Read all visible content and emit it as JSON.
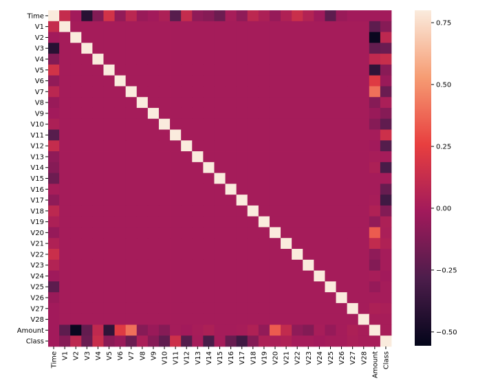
{
  "chart_data": {
    "type": "heatmap",
    "categories": [
      "Time",
      "V1",
      "V2",
      "V3",
      "V4",
      "V5",
      "V6",
      "V7",
      "V8",
      "V9",
      "V10",
      "V11",
      "V12",
      "V13",
      "V14",
      "V15",
      "V16",
      "V17",
      "V18",
      "V19",
      "V20",
      "V21",
      "V22",
      "V23",
      "V24",
      "V25",
      "V26",
      "V27",
      "V28",
      "Amount",
      "Class"
    ],
    "matrix": [
      [
        1,
        0.12,
        -0.01,
        -0.42,
        -0.11,
        0.17,
        -0.06,
        0.08,
        -0.04,
        -0.01,
        0.03,
        -0.25,
        0.12,
        -0.07,
        -0.1,
        -0.18,
        0.01,
        -0.07,
        0.09,
        0.03,
        -0.05,
        0.04,
        0.14,
        0.05,
        -0.02,
        -0.23,
        -0.04,
        -0.01,
        -0.01,
        -0.01,
        -0.01
      ],
      [
        0.12,
        1,
        0,
        0,
        0,
        0,
        0,
        0,
        0,
        0,
        0,
        0,
        0,
        0,
        0,
        0,
        0,
        0,
        0,
        0,
        0,
        0,
        0,
        0,
        0,
        0,
        0,
        0,
        0,
        -0.23,
        -0.1
      ],
      [
        -0.01,
        0,
        1,
        0,
        0,
        0,
        0,
        0,
        0,
        0,
        0,
        0,
        0,
        0,
        0,
        0,
        0,
        0,
        0,
        0,
        0,
        0,
        0,
        0,
        0,
        0,
        0,
        0,
        0,
        -0.53,
        0.09
      ],
      [
        -0.42,
        0,
        0,
        1,
        0,
        0,
        0,
        0,
        0,
        0,
        0,
        0,
        0,
        0,
        0,
        0,
        0,
        0,
        0,
        0,
        0,
        0,
        0,
        0,
        0,
        0,
        0,
        0,
        0,
        -0.21,
        -0.19
      ],
      [
        -0.11,
        0,
        0,
        0,
        1,
        0,
        0,
        0,
        0,
        0,
        0,
        0,
        0,
        0,
        0,
        0,
        0,
        0,
        0,
        0,
        0,
        0,
        0,
        0,
        0,
        0,
        0,
        0,
        0,
        0.1,
        0.13
      ],
      [
        0.17,
        0,
        0,
        0,
        0,
        1,
        0,
        0,
        0,
        0,
        0,
        0,
        0,
        0,
        0,
        0,
        0,
        0,
        0,
        0,
        0,
        0,
        0,
        0,
        0,
        0,
        0,
        0,
        0,
        -0.39,
        -0.09
      ],
      [
        -0.06,
        0,
        0,
        0,
        0,
        0,
        1,
        0,
        0,
        0,
        0,
        0,
        0,
        0,
        0,
        0,
        0,
        0,
        0,
        0,
        0,
        0,
        0,
        0,
        0,
        0,
        0,
        0,
        0,
        0.22,
        -0.04
      ],
      [
        0.08,
        0,
        0,
        0,
        0,
        0,
        0,
        1,
        0,
        0,
        0,
        0,
        0,
        0,
        0,
        0,
        0,
        0,
        0,
        0,
        0,
        0,
        0,
        0,
        0,
        0,
        0,
        0,
        0,
        0.4,
        -0.19
      ],
      [
        -0.04,
        0,
        0,
        0,
        0,
        0,
        0,
        0,
        1,
        0,
        0,
        0,
        0,
        0,
        0,
        0,
        0,
        0,
        0,
        0,
        0,
        0,
        0,
        0,
        0,
        0,
        0,
        0,
        0,
        -0.1,
        0.02
      ],
      [
        -0.01,
        0,
        0,
        0,
        0,
        0,
        0,
        0,
        0,
        1,
        0,
        0,
        0,
        0,
        0,
        0,
        0,
        0,
        0,
        0,
        0,
        0,
        0,
        0,
        0,
        0,
        0,
        0,
        0,
        -0.04,
        -0.1
      ],
      [
        0.03,
        0,
        0,
        0,
        0,
        0,
        0,
        0,
        0,
        0,
        1,
        0,
        0,
        0,
        0,
        0,
        0,
        0,
        0,
        0,
        0,
        0,
        0,
        0,
        0,
        0,
        0,
        0,
        0,
        -0.1,
        -0.22
      ],
      [
        -0.25,
        0,
        0,
        0,
        0,
        0,
        0,
        0,
        0,
        0,
        0,
        1,
        0,
        0,
        0,
        0,
        0,
        0,
        0,
        0,
        0,
        0,
        0,
        0,
        0,
        0,
        0,
        0,
        0,
        0,
        0.15
      ],
      [
        0.12,
        0,
        0,
        0,
        0,
        0,
        0,
        0,
        0,
        0,
        0,
        0,
        1,
        0,
        0,
        0,
        0,
        0,
        0,
        0,
        0,
        0,
        0,
        0,
        0,
        0,
        0,
        0,
        0,
        -0.01,
        -0.26
      ],
      [
        -0.07,
        0,
        0,
        0,
        0,
        0,
        0,
        0,
        0,
        0,
        0,
        0,
        0,
        1,
        0,
        0,
        0,
        0,
        0,
        0,
        0,
        0,
        0,
        0,
        0,
        0,
        0,
        0,
        0,
        0.01,
        0
      ],
      [
        -0.1,
        0,
        0,
        0,
        0,
        0,
        0,
        0,
        0,
        0,
        0,
        0,
        0,
        0,
        1,
        0,
        0,
        0,
        0,
        0,
        0,
        0,
        0,
        0,
        0,
        0,
        0,
        0,
        0,
        0.03,
        -0.3
      ],
      [
        -0.18,
        0,
        0,
        0,
        0,
        0,
        0,
        0,
        0,
        0,
        0,
        0,
        0,
        0,
        0,
        1,
        0,
        0,
        0,
        0,
        0,
        0,
        0,
        0,
        0,
        0,
        0,
        0,
        0,
        0,
        0
      ],
      [
        0.01,
        0,
        0,
        0,
        0,
        0,
        0,
        0,
        0,
        0,
        0,
        0,
        0,
        0,
        0,
        0,
        1,
        0,
        0,
        0,
        0,
        0,
        0,
        0,
        0,
        0,
        0,
        0,
        0,
        0,
        -0.2
      ],
      [
        -0.07,
        0,
        0,
        0,
        0,
        0,
        0,
        0,
        0,
        0,
        0,
        0,
        0,
        0,
        0,
        0,
        0,
        1,
        0,
        0,
        0,
        0,
        0,
        0,
        0,
        0,
        0,
        0,
        0,
        0.01,
        -0.33
      ],
      [
        0.09,
        0,
        0,
        0,
        0,
        0,
        0,
        0,
        0,
        0,
        0,
        0,
        0,
        0,
        0,
        0,
        0,
        0,
        1,
        0,
        0,
        0,
        0,
        0,
        0,
        0,
        0,
        0,
        0,
        0.04,
        -0.11
      ],
      [
        0.03,
        0,
        0,
        0,
        0,
        0,
        0,
        0,
        0,
        0,
        0,
        0,
        0,
        0,
        0,
        0,
        0,
        0,
        0,
        1,
        0,
        0,
        0,
        0,
        0,
        0,
        0,
        0,
        0,
        -0.06,
        0.03
      ],
      [
        -0.05,
        0,
        0,
        0,
        0,
        0,
        0,
        0,
        0,
        0,
        0,
        0,
        0,
        0,
        0,
        0,
        0,
        0,
        0,
        0,
        1,
        0,
        0,
        0,
        0,
        0,
        0,
        0,
        0,
        0.34,
        0.02
      ],
      [
        0.04,
        0,
        0,
        0,
        0,
        0,
        0,
        0,
        0,
        0,
        0,
        0,
        0,
        0,
        0,
        0,
        0,
        0,
        0,
        0,
        0,
        1,
        0,
        0,
        0,
        0,
        0,
        0,
        0,
        0.11,
        0.04
      ],
      [
        0.14,
        0,
        0,
        0,
        0,
        0,
        0,
        0,
        0,
        0,
        0,
        0,
        0,
        0,
        0,
        0,
        0,
        0,
        0,
        0,
        0,
        0,
        1,
        0,
        0,
        0,
        0,
        0,
        0,
        -0.07,
        0
      ],
      [
        0.05,
        0,
        0,
        0,
        0,
        0,
        0,
        0,
        0,
        0,
        0,
        0,
        0,
        0,
        0,
        0,
        0,
        0,
        0,
        0,
        0,
        0,
        0,
        1,
        0,
        0,
        0,
        0,
        0,
        -0.11,
        0
      ],
      [
        -0.02,
        0,
        0,
        0,
        0,
        0,
        0,
        0,
        0,
        0,
        0,
        0,
        0,
        0,
        0,
        0,
        0,
        0,
        0,
        0,
        0,
        0,
        0,
        0,
        1,
        0,
        0,
        0,
        0,
        0.01,
        -0.01
      ],
      [
        -0.23,
        0,
        0,
        0,
        0,
        0,
        0,
        0,
        0,
        0,
        0,
        0,
        0,
        0,
        0,
        0,
        0,
        0,
        0,
        0,
        0,
        0,
        0,
        0,
        0,
        1,
        0,
        0,
        0,
        -0.05,
        0
      ],
      [
        -0.04,
        0,
        0,
        0,
        0,
        0,
        0,
        0,
        0,
        0,
        0,
        0,
        0,
        0,
        0,
        0,
        0,
        0,
        0,
        0,
        0,
        0,
        0,
        0,
        0,
        0,
        1,
        0,
        0,
        0,
        0
      ],
      [
        -0.01,
        0,
        0,
        0,
        0,
        0,
        0,
        0,
        0,
        0,
        0,
        0,
        0,
        0,
        0,
        0,
        0,
        0,
        0,
        0,
        0,
        0,
        0,
        0,
        0,
        0,
        0,
        1,
        0,
        0.03,
        0.02
      ],
      [
        -0.01,
        0,
        0,
        0,
        0,
        0,
        0,
        0,
        0,
        0,
        0,
        0,
        0,
        0,
        0,
        0,
        0,
        0,
        0,
        0,
        0,
        0,
        0,
        0,
        0,
        0,
        0,
        0,
        1,
        0.01,
        0.01
      ],
      [
        -0.01,
        -0.23,
        -0.53,
        -0.21,
        0.1,
        -0.39,
        0.22,
        0.4,
        -0.1,
        -0.04,
        -0.1,
        0,
        -0.01,
        0.01,
        0.03,
        0,
        0,
        0.01,
        0.04,
        -0.06,
        0.34,
        0.11,
        -0.07,
        -0.11,
        0.01,
        -0.05,
        0,
        0.03,
        0.01,
        1,
        0.01
      ],
      [
        -0.01,
        -0.1,
        0.09,
        -0.19,
        0.13,
        -0.09,
        -0.04,
        -0.19,
        0.02,
        -0.1,
        -0.22,
        0.15,
        -0.26,
        0,
        -0.3,
        0,
        -0.2,
        -0.33,
        -0.11,
        0.03,
        0.02,
        0.04,
        0,
        0,
        -0.01,
        0,
        0,
        0.02,
        0.01,
        0.01,
        1
      ]
    ],
    "colorbar_lim": [
      -0.556,
      0.8
    ],
    "colorbar_ticks": [
      {
        "value": -0.5,
        "label": "−0.50"
      },
      {
        "value": -0.25,
        "label": "−0.25"
      },
      {
        "value": 0,
        "label": "0.00"
      },
      {
        "value": 0.25,
        "label": "0.25"
      },
      {
        "value": 0.5,
        "label": "0.50"
      },
      {
        "value": 0.75,
        "label": "0.75"
      }
    ],
    "colormap": [
      "#03051a",
      "#4c1d4b",
      "#a11a5b",
      "#e83f3f",
      "#f69c73",
      "#faebdd"
    ]
  }
}
